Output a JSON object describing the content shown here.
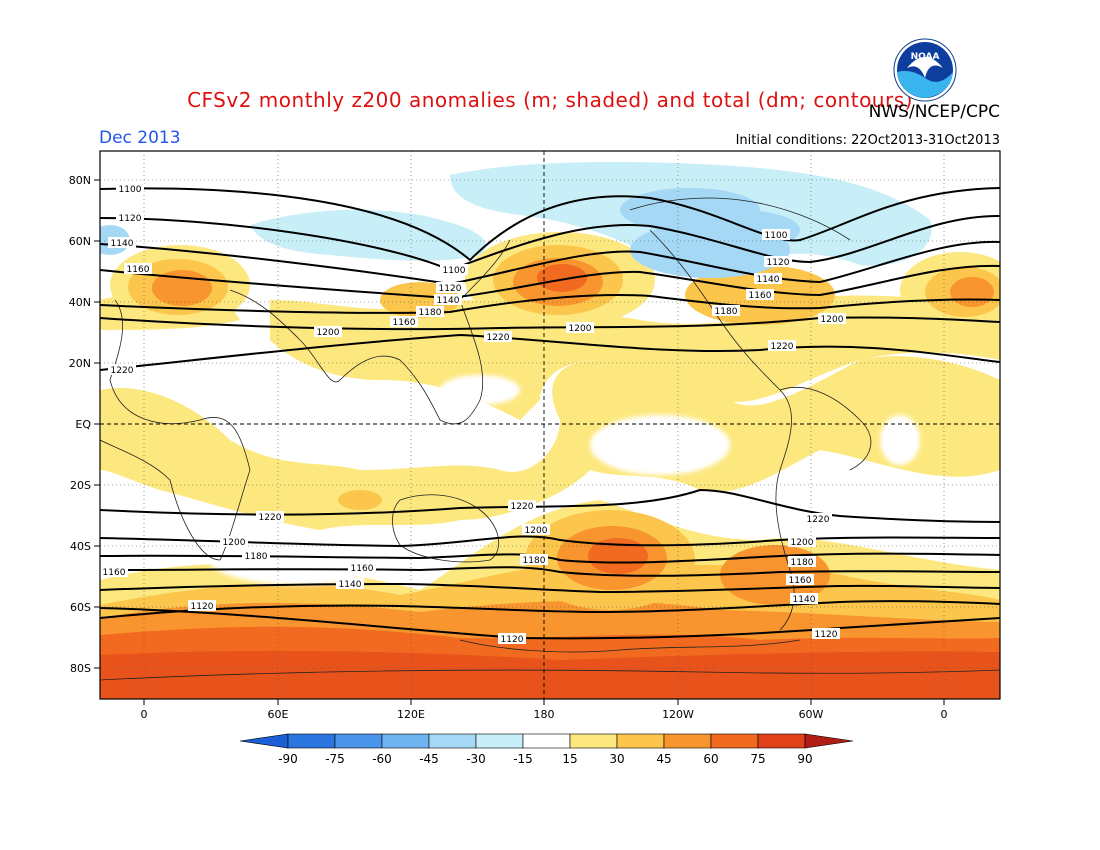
{
  "title": "CFSv2 monthly z200 anomalies (m; shaded) and total (dm; contours)",
  "agency": "NWS/NCEP/CPC",
  "logo_text": "NOAA",
  "valid_month": "Dec 2013",
  "initial_conditions": "Initial conditions: 22Oct2013-31Oct2013",
  "lat_ticks": [
    "80N",
    "60N",
    "40N",
    "20N",
    "EQ",
    "20S",
    "40S",
    "60S",
    "80S"
  ],
  "lon_ticks": [
    "0",
    "60E",
    "120E",
    "180",
    "120W",
    "60W",
    "0"
  ],
  "colorbar": {
    "labels": [
      "-90",
      "-75",
      "-60",
      "-45",
      "-30",
      "-15",
      "15",
      "30",
      "45",
      "60",
      "75",
      "90"
    ],
    "colors": [
      "#1a5fd6",
      "#2b76e0",
      "#4a95ea",
      "#6fb3f1",
      "#a5d8f4",
      "#c8eef7",
      "#ffffff",
      "#fde87f",
      "#fcc54c",
      "#f8952f",
      "#f26a1f",
      "#e2421a",
      "#b01d14"
    ]
  },
  "contour_labels": [
    "1100",
    "1120",
    "1140",
    "1160",
    "1180",
    "1200",
    "1220"
  ]
}
